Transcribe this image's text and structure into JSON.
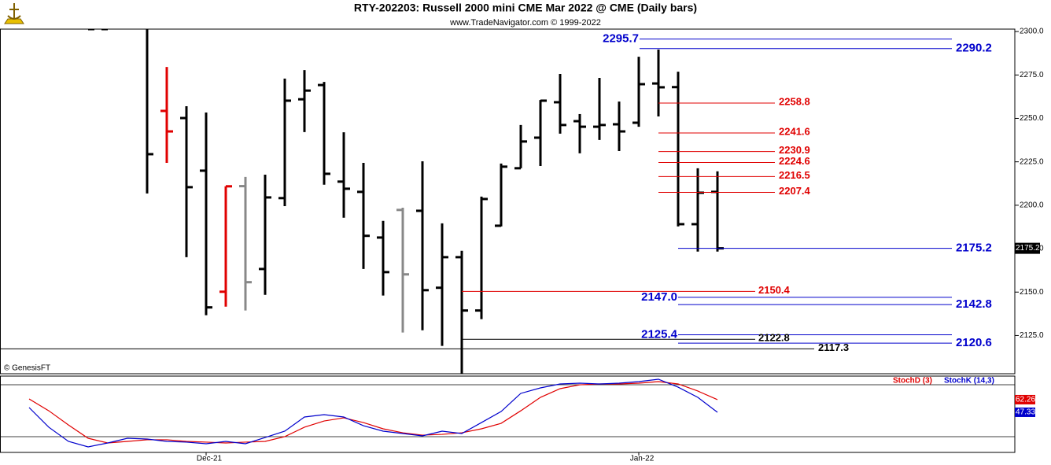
{
  "chart_data": {
    "type": "ohlc",
    "title": "RTY-202203:  Russell 2000 mini CME Mar 2022 @ CME  (Daily bars)",
    "subtitle": "www.TradeNavigator.com © 1999-2022",
    "credit": "© GenesisFT",
    "ylim": [
      2103,
      2301.4
    ],
    "yticks": [
      {
        "value": 2300,
        "label": "2300.0"
      },
      {
        "value": 2275,
        "label": "2275.0"
      },
      {
        "value": 2250,
        "label": "2250.0"
      },
      {
        "value": 2225,
        "label": "2225.0"
      },
      {
        "value": 2200,
        "label": "2200.0"
      },
      {
        "value": 2175,
        "label": "2175.0"
      },
      {
        "value": 2150,
        "label": "2150.0"
      },
      {
        "value": 2125,
        "label": "2125.0"
      }
    ],
    "xticks": [
      {
        "value": 9,
        "label": "Dec-21"
      },
      {
        "value": 31,
        "label": "Jan-22"
      }
    ],
    "bars": {
      "open": [
        null,
        null,
        null,
        null,
        2301.4,
        null,
        null,
        2254.3,
        2250.2,
        2219.9,
        2150.2,
        2211,
        2163.3,
        2204.1,
        2261,
        2269.2,
        2213.6,
        2207.7,
        2181.4,
        2197.3,
        2196.8,
        2152.5,
        2170.1,
        2139.4,
        2188.2,
        2221.3,
        2238.9,
        2259.3,
        2248.4,
        2245.2,
        2246.6,
        2247.5,
        2270.1,
        2268,
        2189.1,
        2207.7
      ],
      "high": [
        null,
        null,
        null,
        null,
        null,
        null,
        2305,
        2279.6,
        2257,
        2253.4,
        2210.9,
        2216.3,
        2217.6,
        2272.9,
        2277.8,
        2271,
        2242,
        2224.4,
        2191,
        2198.6,
        2225.3,
        2189.6,
        2173.8,
        2205,
        2224,
        2246.2,
        2260.6,
        2275.6,
        2252.5,
        2273.3,
        2259.7,
        2285.5,
        2289.6,
        2276.9,
        2221.3,
        2219.5
      ],
      "low": [
        null,
        null,
        null,
        null,
        null,
        null,
        2206.8,
        2224.4,
        2170.1,
        2136.7,
        2141.6,
        2139.4,
        2148.4,
        2199.5,
        2242.1,
        2211.8,
        2192.8,
        2163.3,
        2148,
        2126.7,
        2128,
        2119,
        2103.2,
        2134.4,
        2187.8,
        2221.3,
        2222.6,
        2241.2,
        2229.9,
        2237.6,
        2231.2,
        2245.2,
        2251.1,
        2187.8,
        2173.3,
        2173.3
      ],
      "close": [
        null,
        null,
        null,
        2301.4,
        null,
        null,
        2229.4,
        2242.5,
        2210.4,
        2141.2,
        2210.9,
        2155.7,
        2204.5,
        2260.2,
        2266,
        2218.1,
        2209.5,
        2182.4,
        2161.5,
        2160.2,
        2151.1,
        2170.1,
        2139.4,
        2203.6,
        2222.2,
        2236.7,
        2260.2,
        2246.2,
        2245.2,
        2246.2,
        2242.5,
        2269.7,
        2267.9,
        2189.1,
        2207.2,
        2175.2
      ],
      "colors": [
        "#000",
        "#000",
        "#000",
        "#000",
        "#000",
        "#000",
        "#000",
        "#e00000",
        "#000",
        "#000",
        "#e00000",
        "#888888",
        "#000",
        "#000",
        "#000",
        "#000",
        "#000",
        "#000",
        "#000",
        "#888888",
        "#000",
        "#000",
        "#000",
        "#000",
        "#000",
        "#000",
        "#000",
        "#000",
        "#000",
        "#000",
        "#000",
        "#000",
        "#000",
        "#000",
        "#000",
        "#000"
      ]
    },
    "last_price": 2175.2,
    "levels": {
      "values": [
        2295.7,
        2290.2,
        2258.8,
        2241.6,
        2230.9,
        2224.6,
        2216.5,
        2207.4,
        2175.2,
        2150.4,
        2147.0,
        2142.8,
        2125.4,
        2122.8,
        2120.6,
        2117.3
      ],
      "value_labels": [
        "2295.7",
        "2290.2",
        "2258.8",
        "2241.6",
        "2230.9",
        "2224.6",
        "2216.5",
        "2207.4",
        "2175.2",
        "2150.4",
        "2147.0",
        "2142.8",
        "2125.4",
        "2122.8",
        "2120.6",
        "2117.3"
      ],
      "colors": [
        "#0000cc",
        "#0000cc",
        "#e00000",
        "#e00000",
        "#e00000",
        "#e00000",
        "#e00000",
        "#e00000",
        "#0000cc",
        "#e00000",
        "#0000cc",
        "#0000cc",
        "#0000cc",
        "#000",
        "#0000cc",
        "#000"
      ]
    },
    "stoch": {
      "ylim": [
        0,
        100
      ],
      "series": [
        {
          "name": "StochD (3)",
          "color": "#e00000",
          "values": [
            63.1,
            49.1,
            32.3,
            16.5,
            10.9,
            12.8,
            14.7,
            14.7,
            12.8,
            11.9,
            10.9,
            11.9,
            12.8,
            18.4,
            29.6,
            37,
            40.7,
            35.1,
            27.7,
            23,
            20.2,
            21.1,
            23,
            27.7,
            34.2,
            49.1,
            65,
            75.3,
            79.9,
            80.9,
            80.9,
            81.8,
            83.7,
            80.9,
            72.5,
            62.26
          ]
        },
        {
          "name": "StochK (14,3)",
          "color": "#0000cc",
          "values": [
            52.9,
            29.6,
            12.8,
            6.3,
            10.9,
            16.5,
            15.6,
            12.8,
            11.9,
            10,
            12.8,
            10,
            17.4,
            24.9,
            41.7,
            44.5,
            41.7,
            31.4,
            24.9,
            22.1,
            19.3,
            24.9,
            22.1,
            35.1,
            48.2,
            69.7,
            76.2,
            80.9,
            81.8,
            80.9,
            81.8,
            83.7,
            86.5,
            77.1,
            65,
            47.33
          ]
        }
      ]
    }
  }
}
